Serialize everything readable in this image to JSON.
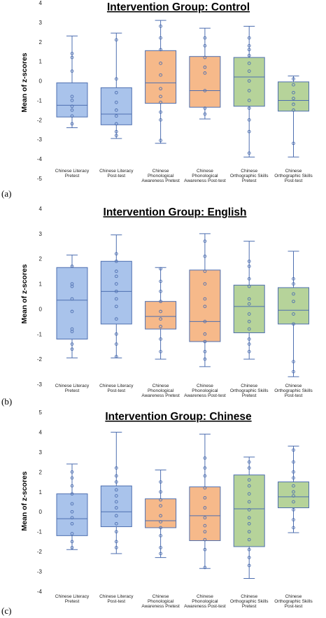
{
  "colors": {
    "literacy_fill": "#a9c3eb",
    "phonology_fill": "#f6b98a",
    "orthography_fill": "#b6d39a",
    "line": "#4e6fb0"
  },
  "chart_data": [
    {
      "type": "box",
      "panel": "(a)",
      "title": "Intervention Group: Control",
      "ylabel": "Mean of z-scores",
      "ylim": [
        -5,
        4
      ],
      "yticks": [
        "4",
        "3",
        "2",
        "1",
        "0",
        "-1",
        "-2",
        "-3",
        "-4",
        "-5"
      ],
      "categories": [
        [
          "Chinese Literacy",
          "Pretest"
        ],
        [
          "Chinese Literacy",
          "Post-test"
        ],
        [
          "Chinese",
          "Phonological",
          "Awareness Pretest"
        ],
        [
          "Chinese",
          "Phonological",
          "Awareness Post-test"
        ],
        [
          "Chinese",
          "Orthographic Skills",
          "Pretest"
        ],
        [
          "Chinese",
          "Orthographic Skills",
          "Post-test"
        ]
      ],
      "boxes": [
        {
          "min": -2.4,
          "q1": -1.85,
          "median": -1.25,
          "q3": -0.1,
          "max": 2.3,
          "color": "literacy_fill",
          "points": [
            1.4,
            1.2,
            0.5,
            -0.8,
            -1.0,
            -1.3,
            -1.5,
            -1.8,
            -2.2
          ]
        },
        {
          "min": -2.95,
          "q1": -2.25,
          "median": -1.7,
          "q3": -0.35,
          "max": 2.45,
          "color": "literacy_fill",
          "points": [
            2.1,
            0.1,
            -0.6,
            -1.1,
            -1.5,
            -1.8,
            -2.2,
            -2.6,
            -2.8
          ]
        },
        {
          "min": -3.2,
          "q1": -1.15,
          "median": -0.1,
          "q3": 1.55,
          "max": 3.1,
          "color": "phonology_fill",
          "points": [
            2.8,
            2.2,
            1.6,
            0.9,
            0.3,
            -0.4,
            -0.8,
            -1.1,
            -1.6,
            -2.0,
            -3.05
          ]
        },
        {
          "min": -1.95,
          "q1": -1.35,
          "median": -0.5,
          "q3": 1.25,
          "max": 2.7,
          "color": "phonology_fill",
          "points": [
            2.2,
            1.8,
            1.2,
            0.7,
            0.4,
            -0.5,
            -1.4,
            -1.7
          ]
        },
        {
          "min": -3.9,
          "q1": -1.3,
          "median": 0.2,
          "q3": 1.2,
          "max": 2.8,
          "color": "orthography_fill",
          "points": [
            2.2,
            1.8,
            1.6,
            1.3,
            0.9,
            0.5,
            0.0,
            -0.5,
            -1.0,
            -1.4,
            -2.0,
            -2.6,
            -3.7
          ]
        },
        {
          "min": -3.9,
          "q1": -1.55,
          "median": -1.0,
          "q3": -0.05,
          "max": 0.25,
          "color": "orthography_fill",
          "points": [
            0.1,
            -0.2,
            -0.6,
            -0.9,
            -1.2,
            -1.5,
            -3.2
          ]
        }
      ]
    },
    {
      "type": "box",
      "panel": "(b)",
      "title": "Intervention Group: English",
      "ylabel": "Mean of z-scores",
      "ylim": [
        -3,
        4
      ],
      "yticks": [
        "4",
        "3",
        "2",
        "1",
        "0",
        "-1",
        "-2",
        "-3"
      ],
      "categories": [
        [
          "Chinese Literacy",
          "Pretest"
        ],
        [
          "Chinese Literacy",
          "Post-test"
        ],
        [
          "Chinese",
          "Phonological",
          "Awareness Pretest"
        ],
        [
          "Chinese",
          "Phonological",
          "Awareness Post-test"
        ],
        [
          "Chinese",
          "Orthographic Skills",
          "Pretest"
        ],
        [
          "Chinese",
          "Orthographic Skills",
          "Post-test"
        ]
      ],
      "boxes": [
        {
          "min": -1.95,
          "q1": -1.2,
          "median": 0.35,
          "q3": 1.65,
          "max": 2.15,
          "color": "literacy_fill",
          "points": [
            1.7,
            1.0,
            0.9,
            0.4,
            -0.1,
            -0.8,
            -0.9,
            -1.4,
            -1.6
          ]
        },
        {
          "min": -1.95,
          "q1": -0.6,
          "median": 0.7,
          "q3": 1.9,
          "max": 2.95,
          "color": "literacy_fill",
          "points": [
            2.2,
            1.9,
            1.5,
            1.3,
            1.0,
            0.7,
            0.4,
            0.1,
            -0.4,
            -1.0,
            -1.4,
            -1.9
          ]
        },
        {
          "min": -2.0,
          "q1": -0.8,
          "median": -0.3,
          "q3": 0.3,
          "max": 1.65,
          "color": "phonology_fill",
          "points": [
            1.6,
            1.1,
            0.7,
            0.3,
            -0.1,
            -0.4,
            -0.7,
            -1.2,
            -1.7
          ]
        },
        {
          "min": -2.3,
          "q1": -1.3,
          "median": -0.5,
          "q3": 1.55,
          "max": 3.0,
          "color": "phonology_fill",
          "points": [
            2.7,
            2.1,
            1.5,
            1.0,
            0.4,
            0.1,
            -0.5,
            -1.0,
            -1.3,
            -1.7,
            -2.0
          ]
        },
        {
          "min": -2.0,
          "q1": -0.95,
          "median": 0.1,
          "q3": 0.95,
          "max": 2.7,
          "color": "orthography_fill",
          "points": [
            1.9,
            1.7,
            1.2,
            0.9,
            0.4,
            0.2,
            -0.2,
            -0.5,
            -0.8,
            -1.2,
            -1.4,
            -1.7
          ]
        },
        {
          "min": -2.7,
          "q1": -0.6,
          "median": -0.05,
          "q3": 0.85,
          "max": 2.3,
          "color": "orthography_fill",
          "points": [
            1.2,
            1.0,
            0.6,
            0.3,
            -0.2,
            -0.6,
            -2.1,
            -2.5
          ]
        }
      ]
    },
    {
      "type": "box",
      "panel": "(c)",
      "title": "Intervention Group: Chinese",
      "ylabel": "Mean of z-scores",
      "ylim": [
        -4,
        5
      ],
      "yticks": [
        "5",
        "4",
        "3",
        "2",
        "1",
        "0",
        "-1",
        "-2",
        "-3",
        "-4"
      ],
      "categories": [
        [
          "Chinese Literacy",
          "Pretest"
        ],
        [
          "Chinese Literacy",
          "Post-test"
        ],
        [
          "Chinese",
          "Phonological",
          "Awareness Pretest"
        ],
        [
          "Chinese",
          "Phonological",
          "Awareness Post-test"
        ],
        [
          "Chinese",
          "Orthographic Skills",
          "Pretest"
        ],
        [
          "Chinese",
          "Orthographic Skills",
          "Post-test"
        ]
      ],
      "boxes": [
        {
          "min": -1.9,
          "q1": -1.2,
          "median": -0.35,
          "q3": 0.9,
          "max": 2.4,
          "color": "literacy_fill",
          "points": [
            2.0,
            1.7,
            1.3,
            0.9,
            0.4,
            0.0,
            -0.3,
            -0.6,
            -1.1,
            -1.5,
            -1.8
          ]
        },
        {
          "min": -2.1,
          "q1": -0.75,
          "median": 0.0,
          "q3": 1.3,
          "max": 4.0,
          "color": "literacy_fill",
          "points": [
            2.2,
            1.8,
            1.5,
            1.1,
            0.8,
            0.5,
            0.2,
            -0.2,
            -0.6,
            -1.0,
            -1.5,
            -1.8
          ]
        },
        {
          "min": -2.3,
          "q1": -0.8,
          "median": -0.45,
          "q3": 0.65,
          "max": 2.1,
          "color": "phonology_fill",
          "points": [
            1.5,
            1.0,
            0.6,
            0.3,
            -0.2,
            -0.5,
            -0.8,
            -1.2,
            -1.8,
            -2.1
          ]
        },
        {
          "min": -2.85,
          "q1": -1.45,
          "median": -0.2,
          "q3": 1.25,
          "max": 3.9,
          "color": "phonology_fill",
          "points": [
            2.7,
            2.2,
            1.8,
            1.2,
            0.7,
            0.2,
            -0.3,
            -0.7,
            -1.0,
            -1.4,
            -1.9,
            -2.8
          ]
        },
        {
          "min": -3.35,
          "q1": -1.75,
          "median": 0.15,
          "q3": 1.85,
          "max": 2.75,
          "color": "orthography_fill",
          "points": [
            2.5,
            2.2,
            1.6,
            1.3,
            0.9,
            0.5,
            0.1,
            -0.3,
            -0.6,
            -1.0,
            -1.4,
            -1.9,
            -2.3,
            -2.7
          ]
        },
        {
          "min": -1.05,
          "q1": 0.2,
          "median": 0.75,
          "q3": 1.5,
          "max": 3.3,
          "color": "orthography_fill",
          "points": [
            3.1,
            2.5,
            2.0,
            1.7,
            1.3,
            1.0,
            0.8,
            0.5,
            0.1,
            -0.4,
            -0.8
          ]
        }
      ]
    }
  ]
}
